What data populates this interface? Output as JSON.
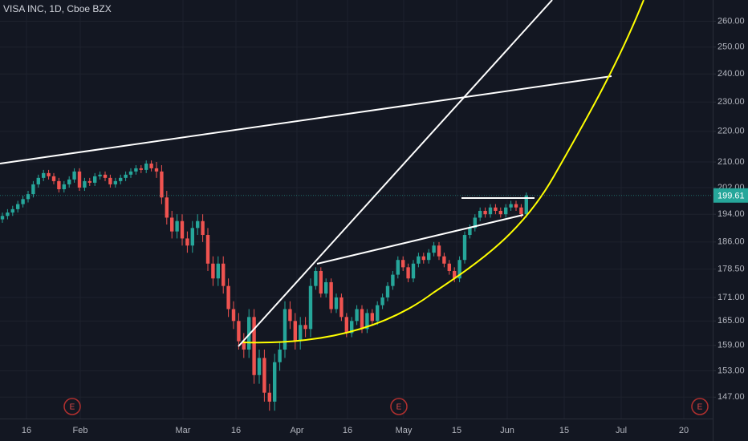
{
  "chart_data": {
    "type": "candlestick",
    "title": "VISA INC, 1D, Cboe BZX",
    "log_scale": true,
    "grid": true,
    "up_color": "#26a69a",
    "down_color": "#ef5350",
    "ylim": [
      142.3,
      268.5
    ],
    "yticks": [
      {
        "value": 260,
        "label": "260.00"
      },
      {
        "value": 250,
        "label": "250.00"
      },
      {
        "value": 240,
        "label": "240.00"
      },
      {
        "value": 230,
        "label": "230.00"
      },
      {
        "value": 220,
        "label": "220.00"
      },
      {
        "value": 210,
        "label": "210.00"
      },
      {
        "value": 202,
        "label": "202.00"
      },
      {
        "value": 194,
        "label": "194.00"
      },
      {
        "value": 186,
        "label": "186.00"
      },
      {
        "value": 178.5,
        "label": "178.50"
      },
      {
        "value": 171,
        "label": "171.00"
      },
      {
        "value": 165,
        "label": "165.00"
      },
      {
        "value": 159,
        "label": "159.00"
      },
      {
        "value": 153,
        "label": "153.00"
      },
      {
        "value": 147,
        "label": "147.00"
      }
    ],
    "categories": [
      "16",
      "Feb",
      "Mar",
      "16",
      "Apr",
      "16",
      "May",
      "15",
      "Jun",
      "15",
      "Jul",
      "20"
    ],
    "events": [
      "E",
      "E",
      "E"
    ],
    "open": [
      192.5,
      193.5,
      194.5,
      195.5,
      197,
      198.5,
      200,
      203,
      205,
      206.5,
      205.5,
      204,
      201.5,
      203,
      204.5,
      207,
      202,
      204,
      203.5,
      205.5,
      206,
      205,
      203,
      204,
      205,
      206,
      207,
      208,
      207.5,
      209.5,
      208,
      207,
      199,
      193,
      189,
      192,
      187,
      185,
      190,
      192,
      188,
      180,
      176,
      180,
      174,
      168,
      165,
      160,
      158,
      166,
      152,
      156,
      148,
      146,
      155,
      158,
      168,
      165,
      160,
      164,
      163,
      174,
      178,
      172,
      175,
      168,
      171,
      166,
      162,
      165,
      168,
      163,
      167,
      165,
      169,
      171,
      174,
      177,
      181,
      179,
      176,
      180,
      182,
      181,
      183,
      185,
      182,
      180,
      178,
      176,
      181,
      188,
      190,
      193,
      195,
      194,
      196,
      195,
      194,
      196,
      197,
      196,
      194
    ],
    "high": [
      194.5,
      195.5,
      196.5,
      198,
      199.5,
      201,
      204,
      206,
      207.5,
      207.5,
      206.5,
      205,
      204,
      205.5,
      208,
      208,
      205,
      205,
      206.5,
      207,
      207,
      206,
      205,
      206,
      207,
      208,
      209,
      209,
      210.5,
      210.5,
      210,
      209,
      201,
      195,
      194,
      194,
      189,
      192,
      194,
      194,
      190,
      182,
      182,
      182,
      176,
      170,
      167,
      162,
      168,
      168,
      158,
      158,
      150,
      157,
      160,
      170,
      170,
      167,
      166,
      166,
      176,
      179,
      179,
      176,
      176,
      172,
      172,
      167,
      166,
      169,
      169,
      168,
      168,
      170,
      172,
      175,
      178,
      182,
      182,
      180,
      181,
      183,
      183,
      184,
      186,
      186,
      183,
      181,
      179,
      182,
      189,
      191,
      194,
      196,
      196,
      197,
      197,
      196,
      197,
      198,
      198,
      197,
      200.5
    ],
    "low": [
      191.5,
      192.5,
      193.5,
      194.5,
      196,
      197.5,
      199,
      202,
      204,
      204.5,
      203,
      200.5,
      200.5,
      202,
      203.5,
      201,
      201,
      202.5,
      202.5,
      204.5,
      204,
      202,
      202,
      203,
      204,
      205,
      206,
      206.5,
      206.5,
      207,
      205,
      197,
      191,
      187,
      187,
      185,
      183,
      183,
      188,
      186,
      178,
      174,
      174,
      172,
      166,
      163,
      158,
      156,
      156,
      150,
      150,
      146,
      144,
      144,
      153,
      156,
      163,
      158,
      158,
      161,
      161,
      173,
      171,
      171,
      167,
      167,
      165,
      161,
      161,
      164,
      162,
      162,
      164,
      164,
      168,
      170,
      173,
      176,
      178,
      175,
      175,
      179,
      180,
      180,
      182,
      181,
      179,
      177,
      175,
      175,
      180,
      187,
      189,
      192,
      193,
      193,
      194,
      193,
      193,
      195,
      195,
      193,
      193
    ],
    "close": [
      193.5,
      194.5,
      195.5,
      197,
      198.5,
      200,
      203,
      205,
      206.5,
      205.5,
      204,
      201.5,
      203,
      204.5,
      207,
      202,
      204,
      203.5,
      205.5,
      206,
      205,
      203,
      204,
      205,
      206,
      207,
      208,
      207.5,
      209.5,
      208,
      207,
      199,
      193,
      189,
      192,
      187,
      185,
      190,
      192,
      188,
      180,
      176,
      180,
      174,
      168,
      165,
      160,
      158,
      166,
      152,
      156,
      148,
      146,
      155,
      158,
      168,
      165,
      160,
      164,
      163,
      174,
      178,
      172,
      175,
      168,
      171,
      166,
      162,
      165,
      168,
      163,
      167,
      165,
      169,
      171,
      174,
      177,
      181,
      179,
      176,
      180,
      182,
      181,
      183,
      185,
      182,
      180,
      178,
      176,
      181,
      188,
      190,
      193,
      195,
      194,
      196,
      195,
      194,
      196,
      197,
      196,
      194,
      199.61
    ]
  }
}
